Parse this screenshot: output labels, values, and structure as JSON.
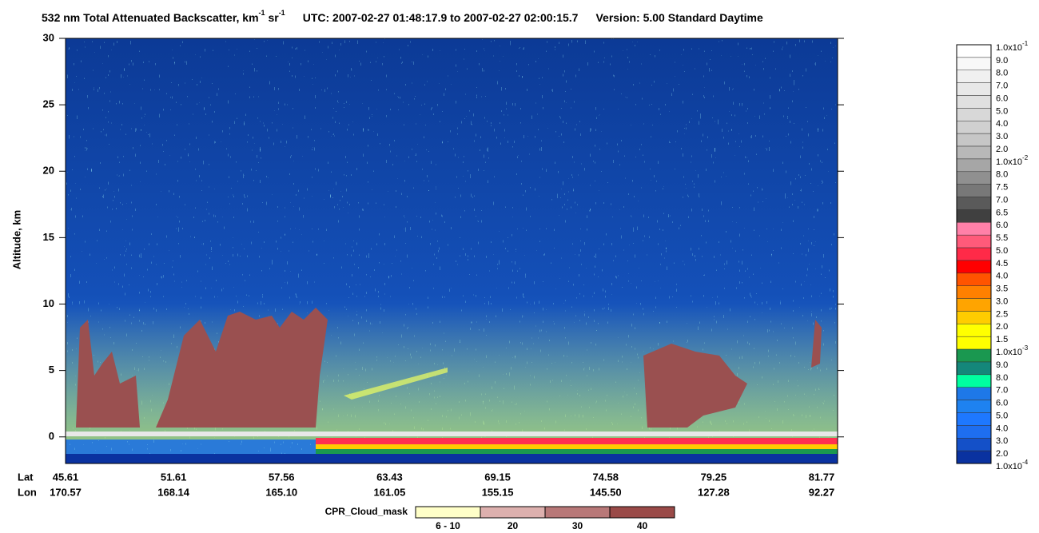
{
  "chart_data": {
    "type": "curtain",
    "title_parts": [
      "532 nm Total Attenuated Backscatter, km",
      "-1",
      " sr",
      "-1",
      "UTC:  2007-02-27 01:48:17.9  to  2007-02-27 02:00:15.7",
      "Version: 5.00  Standard  Daytime"
    ],
    "y_label": "Altitude, km",
    "ylim": [
      -2,
      30
    ],
    "yticks": [
      0,
      5,
      10,
      15,
      20,
      25,
      30
    ],
    "x_row_labels": [
      "Lat",
      "Lon"
    ],
    "lat": [
      "45.61",
      "51.61",
      "57.56",
      "63.43",
      "69.15",
      "74.58",
      "79.25",
      "81.77"
    ],
    "lon": [
      "170.57",
      "168.14",
      "165.10",
      "161.05",
      "155.15",
      "145.50",
      "127.28",
      "92.27"
    ],
    "colorbar": {
      "labels": [
        {
          "mantissa": "1.0x10",
          "exponent": "-1"
        },
        "9.0",
        "8.0",
        "7.0",
        "6.0",
        "5.0",
        "4.0",
        "3.0",
        "2.0",
        {
          "mantissa": "1.0x10",
          "exponent": "-2"
        },
        "8.0",
        "7.5",
        "7.0",
        "6.5",
        "6.0",
        "5.5",
        "5.0",
        "4.5",
        "4.0",
        "3.5",
        "3.0",
        "2.5",
        "2.0",
        "1.5",
        {
          "mantissa": "1.0x10",
          "exponent": "-3"
        },
        "9.0",
        "8.0",
        "7.0",
        "6.0",
        "5.0",
        "4.0",
        "3.0",
        "2.0",
        {
          "mantissa": "1.0x10",
          "exponent": "-4"
        }
      ],
      "colors": [
        "#ffffff",
        "#f8f8f8",
        "#f0f0f0",
        "#e8e8e8",
        "#e0e0e0",
        "#d8d8d8",
        "#d0d0d0",
        "#c6c6c6",
        "#b8b8b8",
        "#a6a6a6",
        "#909090",
        "#787878",
        "#5a5a5a",
        "#404040",
        "#ff80a8",
        "#ff5a7a",
        "#ff2a48",
        "#ff0000",
        "#ff5400",
        "#ff8000",
        "#ffa400",
        "#ffcc00",
        "#ffff00",
        "#ffff00",
        "#1a9850",
        "#14877a",
        "#00ffa0",
        "#1e78e8",
        "#1e82f0",
        "#1e78ff",
        "#1e6ef0",
        "#1450c8",
        "#0a32a0"
      ]
    },
    "cloud_mask": {
      "title": "CPR_Cloud_mask",
      "labels": [
        "6 - 10",
        "20",
        "30",
        "40"
      ],
      "colors": [
        "#ffffc8",
        "#ddb0ae",
        "#b87878",
        "#9a4a48"
      ]
    }
  }
}
